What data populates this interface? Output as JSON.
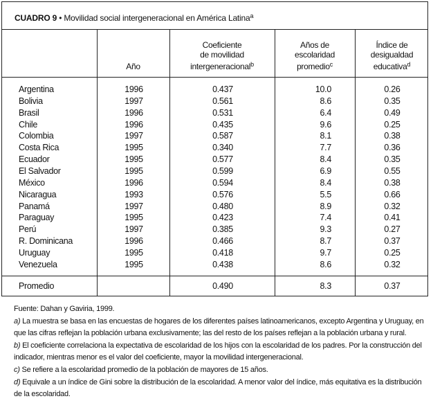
{
  "title": {
    "label": "CUADRO 9",
    "separator": "•",
    "text": "Movilidad social intergeneracional en América Latina",
    "note": "a"
  },
  "headers": [
    {
      "lines": [
        ""
      ],
      "note": ""
    },
    {
      "lines": [
        "Año"
      ],
      "note": ""
    },
    {
      "lines": [
        "Coeficiente",
        "de movilidad",
        "intergeneracional"
      ],
      "note": "b"
    },
    {
      "lines": [
        "Años de",
        "escolaridad",
        "promedio"
      ],
      "note": "c"
    },
    {
      "lines": [
        "Índice de",
        "desigualdad",
        "educativa"
      ],
      "note": "d"
    }
  ],
  "rows": [
    [
      "Argentina",
      "1996",
      "0.437",
      "10.0",
      "0.26"
    ],
    [
      "Bolivia",
      "1997",
      "0.561",
      "8.6",
      "0.35"
    ],
    [
      "Brasil",
      "1996",
      "0.531",
      "6.4",
      "0.49"
    ],
    [
      "Chile",
      "1996",
      "0.435",
      "9.6",
      "0.25"
    ],
    [
      "Colombia",
      "1997",
      "0.587",
      "8.1",
      "0.38"
    ],
    [
      "Costa Rica",
      "1995",
      "0.340",
      "7.7",
      "0.36"
    ],
    [
      "Ecuador",
      "1995",
      "0.577",
      "8.4",
      "0.35"
    ],
    [
      "El Salvador",
      "1995",
      "0.599",
      "6.9",
      "0.55"
    ],
    [
      "México",
      "1996",
      "0.594",
      "8.4",
      "0.38"
    ],
    [
      "Nicaragua",
      "1993",
      "0.576",
      "5.5",
      "0.66"
    ],
    [
      "Panamá",
      "1997",
      "0.480",
      "8.9",
      "0.32"
    ],
    [
      "Paraguay",
      "1995",
      "0.423",
      "7.4",
      "0.41"
    ],
    [
      "Perú",
      "1997",
      "0.385",
      "9.3",
      "0.27"
    ],
    [
      "R. Dominicana",
      "1996",
      "0.466",
      "8.7",
      "0.37"
    ],
    [
      "Uruguay",
      "1995",
      "0.418",
      "9.7",
      "0.25"
    ],
    [
      "Venezuela",
      "1995",
      "0.438",
      "8.6",
      "0.32"
    ]
  ],
  "average": [
    "Promedio",
    "",
    "0.490",
    "8.3",
    "0.37"
  ],
  "notes": {
    "source": "Fuente: Dahan y Gaviria, 1999.",
    "items": [
      {
        "key": "a)",
        "text": "La muestra se basa en las encuestas de hogares de los diferentes países latinoamericanos, excepto Argentina y Uruguay, en que las cifras reflejan la población urbana exclusivamente; las del resto de los países reflejan a la población urbana y rural."
      },
      {
        "key": "b)",
        "text": "El coeficiente correlaciona la expectativa de escolaridad de los hijos con la escolaridad de los padres. Por la construcción del indicador, mientras menor es el valor del coeficiente, mayor la movilidad intergeneracional."
      },
      {
        "key": "c)",
        "text": "Se refiere a la escolaridad promedio de la población de mayores de 15 años."
      },
      {
        "key": "d)",
        "text": "Equivale a un índice de Gini sobre la distribución de la escolaridad. A menor valor del índice, más equitativa es la distribución de la escolaridad."
      }
    ]
  }
}
